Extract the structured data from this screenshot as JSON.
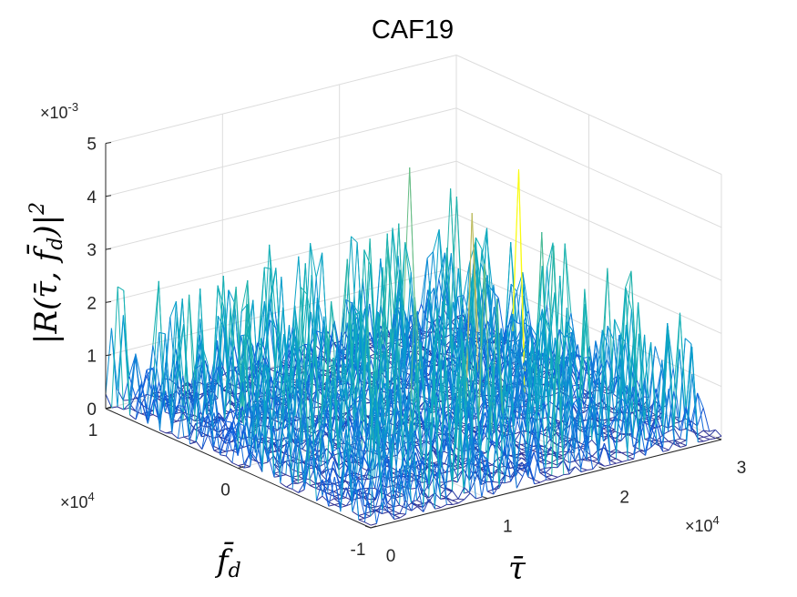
{
  "chart_data": {
    "type": "surface-3d-mesh",
    "title": "CAF19",
    "xlabel": "τ̄",
    "ylabel": "f̄_d",
    "zlabel": "|R(τ̄, f̄_d)|²",
    "x_ticks": [
      "0",
      "1",
      "2",
      "3"
    ],
    "y_ticks": [
      "-1",
      "0",
      "1"
    ],
    "z_ticks": [
      "0",
      "1",
      "2",
      "3",
      "4",
      "5"
    ],
    "x_exponent": "×10^4",
    "y_exponent": "×10^4",
    "z_exponent": "×10^-3",
    "xlim": [
      0,
      30000
    ],
    "ylim": [
      -10000,
      10000
    ],
    "zlim": [
      0,
      0.005
    ],
    "colormap": "parula",
    "grid": true,
    "peak": {
      "x": 24000,
      "y": 0,
      "z": 0.0043
    },
    "noise_floor_max": 0.0025
  }
}
